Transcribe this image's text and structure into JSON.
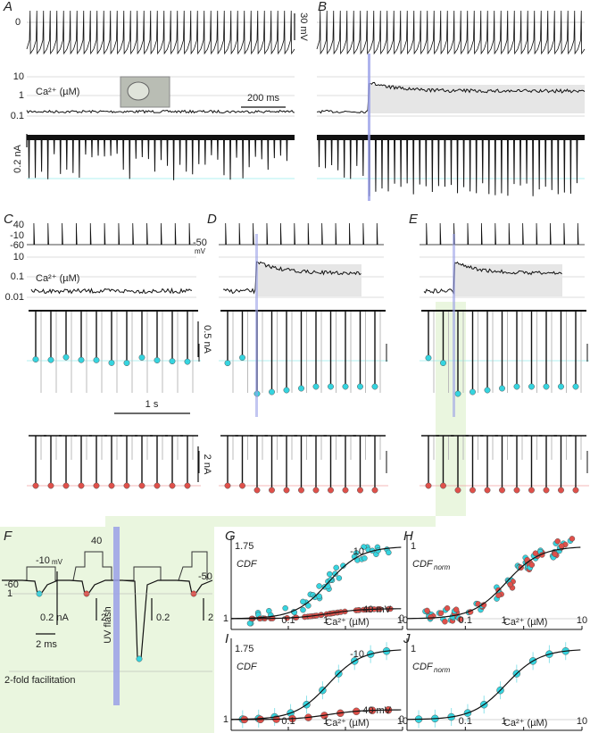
{
  "panel_letters": [
    "A",
    "B",
    "C",
    "D",
    "E",
    "F",
    "G",
    "H",
    "I",
    "J"
  ],
  "panel_A": {
    "voltage_zero": "0",
    "voltage_scale": "30 mV",
    "ca_ticks": [
      "10",
      "1",
      "0.1"
    ],
    "ca_label": "Ca²⁺ (µM)",
    "time_scale": "200 ms",
    "current_scale": "0.2 nA"
  },
  "panel_C": {
    "voltage_ticks": [
      "40",
      "-10",
      "-60"
    ],
    "holding": "-50",
    "holding_unit": "mV",
    "ca_ticks": [
      "10",
      "0.1",
      "0.01"
    ],
    "ca_label": "Ca²⁺ (µM)",
    "current_scale": "0.5 nA",
    "time_scale": "1 s",
    "current_scale_2": "2 nA"
  },
  "panel_F": {
    "step_1": "-10",
    "step_1_unit": "mV",
    "step_2": "40",
    "holding": "-60",
    "holding_2": "-50",
    "scales": [
      "0.2 nA",
      "2",
      "0.2",
      "2"
    ],
    "time_scale": "2 ms",
    "baseline": "1",
    "flash": "UV flash",
    "facilitation": "2-fold facilitation"
  },
  "panel_G": {
    "ymax": "1.75",
    "ylabel": "CDF",
    "curve_1": "-10",
    "curve_2": "40 mV",
    "ymin": "1",
    "xticks": [
      "0.1",
      "1",
      "10"
    ],
    "xlabel": "Ca²⁺ (µM)"
  },
  "panel_H": {
    "ymax": "1",
    "ylabel": "CDF",
    "ylabel_sub": "norm",
    "ymin": "0",
    "xticks": [
      "0.1",
      "1",
      "10"
    ],
    "xlabel": "Ca²⁺ (µM)"
  },
  "panel_I": {
    "ymax": "1.75",
    "ylabel": "CDF",
    "curve_1": "-10",
    "curve_2": "40 mV",
    "ymin": "1",
    "xticks": [
      "0.1",
      "1",
      "10"
    ],
    "xlabel": "Ca²⁺ (µM)"
  },
  "panel_J": {
    "ymax": "1",
    "ylabel": "CDF",
    "ylabel_sub": "norm",
    "ymin": "0",
    "xticks": [
      "0.1",
      "1",
      "10"
    ],
    "xlabel": "Ca²⁺ (µM)"
  }
}
